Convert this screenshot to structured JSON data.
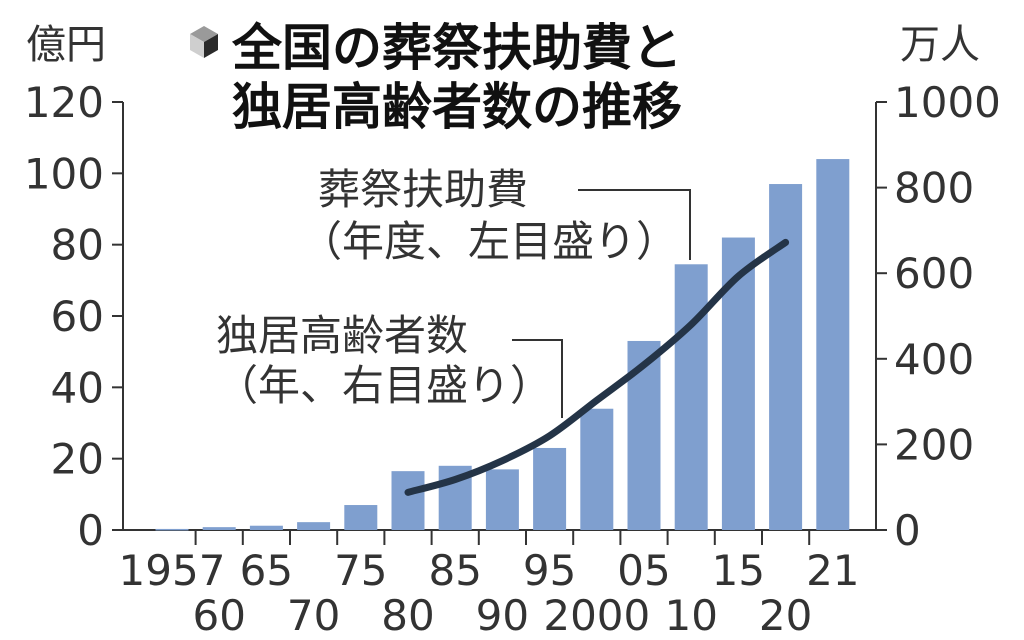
{
  "chart_data": {
    "type": "bar+line",
    "title_lines": [
      "全国の葬祭扶助費と",
      "独居高齢者数の推移"
    ],
    "left_unit": "億円",
    "right_unit": "万人",
    "left_ylim": [
      0,
      120
    ],
    "right_ylim": [
      0,
      1000
    ],
    "left_ticks": [
      "0",
      "20",
      "40",
      "60",
      "80",
      "100",
      "120"
    ],
    "right_ticks": [
      "0",
      "200",
      "400",
      "600",
      "800",
      "1000"
    ],
    "x_labels_top": [
      "1957",
      "65",
      "75",
      "85",
      "95",
      "05",
      "15",
      "21"
    ],
    "x_labels_bottom": [
      "60",
      "70",
      "80",
      "90",
      "2000",
      "10",
      "20"
    ],
    "bars": {
      "name": "葬祭扶助費",
      "years": [
        1957,
        1960,
        1965,
        1970,
        1975,
        1980,
        1985,
        1990,
        1995,
        2000,
        2005,
        2010,
        2015,
        2020,
        2021
      ],
      "values": [
        0.3,
        0.8,
        1.2,
        2.2,
        7.0,
        16.5,
        18.0,
        17.0,
        23.0,
        34.0,
        53.0,
        74.5,
        82.0,
        97.0,
        104.0
      ],
      "color": "#7f9fcf"
    },
    "line": {
      "name": "独居高齢者数",
      "years": [
        1980,
        1985,
        1990,
        1995,
        2000,
        2005,
        2010,
        2015,
        2020
      ],
      "values": [
        88,
        118,
        162,
        220,
        303,
        386,
        480,
        593,
        672
      ],
      "color": "#243447"
    },
    "annotations": [
      {
        "lines": [
          "葬祭扶助費",
          "（年度、左目盛り）"
        ]
      },
      {
        "lines": [
          "独居高齢者数",
          "（年、右目盛り）"
        ]
      }
    ],
    "icon": "cube-icon"
  }
}
